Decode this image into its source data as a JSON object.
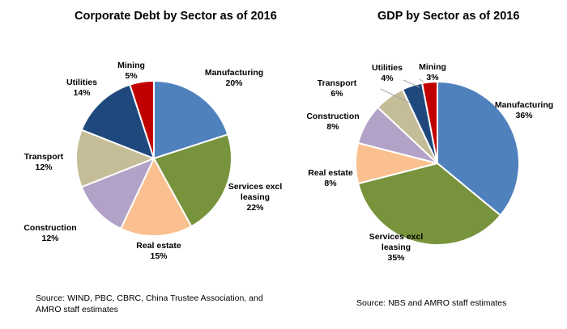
{
  "chart_data": [
    {
      "type": "pie",
      "title": "Corporate Debt by Sector as of 2016",
      "source": "Source: WIND, PBC, CBRC, China Trustee Association, and AMRO staff estimates",
      "categories": [
        "Manufacturing",
        "Services excl leasing",
        "Real estate",
        "Construction",
        "Transport",
        "Utilities",
        "Mining"
      ],
      "labels": [
        [
          "Manufacturing"
        ],
        [
          "Services excl",
          "leasing"
        ],
        [
          "Real estate"
        ],
        [
          "Construction"
        ],
        [
          "Transport"
        ],
        [
          "Utilities"
        ],
        [
          "Mining"
        ]
      ],
      "values": [
        20,
        22,
        15,
        12,
        12,
        14,
        5
      ],
      "value_labels": [
        "20%",
        "22%",
        "15%",
        "12%",
        "12%",
        "14%",
        "5%"
      ],
      "colors": [
        "#4f81bd",
        "#77933c",
        "#fac090",
        "#b3a2c7",
        "#c4bd97",
        "#1f497d",
        "#c00000"
      ]
    },
    {
      "type": "pie",
      "title": "GDP by Sector as of 2016",
      "source": "Source: NBS and AMRO staff estimates",
      "categories": [
        "Manufacturing",
        "Services excl leasing",
        "Real estate",
        "Construction",
        "Transport",
        "Utilities",
        "Mining"
      ],
      "labels": [
        [
          "Manufacturing"
        ],
        [
          "Services excl",
          "leasing"
        ],
        [
          "Real estate"
        ],
        [
          "Construction"
        ],
        [
          "Transport"
        ],
        [
          "Utilities"
        ],
        [
          "Mining"
        ]
      ],
      "values": [
        36,
        35,
        8,
        8,
        6,
        4,
        3
      ],
      "value_labels": [
        "36%",
        "35%",
        "8%",
        "8%",
        "6%",
        "4%",
        "3%"
      ],
      "colors": [
        "#4f81bd",
        "#77933c",
        "#fac090",
        "#b3a2c7",
        "#c4bd97",
        "#1f497d",
        "#c00000"
      ]
    }
  ]
}
